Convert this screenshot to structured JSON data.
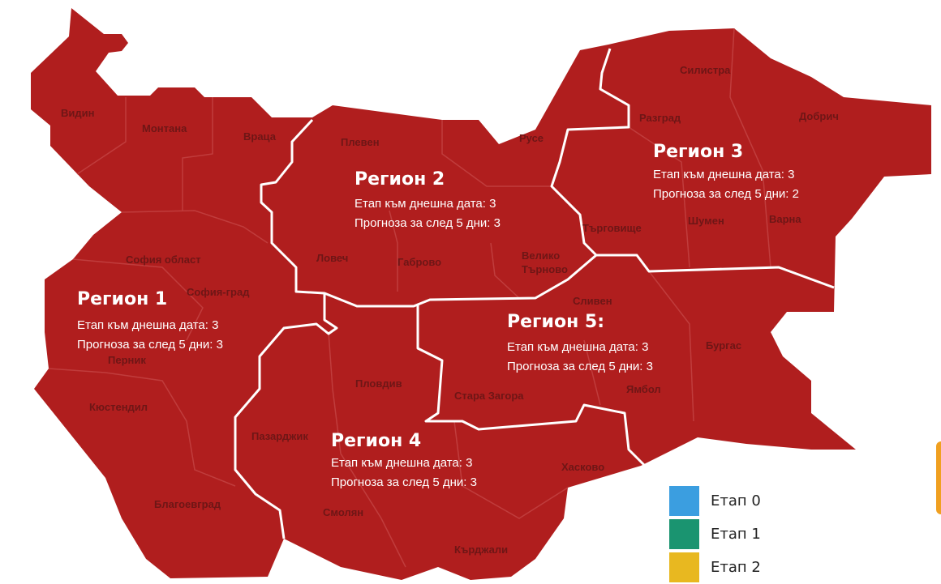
{
  "map": {
    "fill_color": "#b01e1e",
    "border_color": "#ffffff",
    "provinces": [
      {
        "name": "Видин"
      },
      {
        "name": "Монтана"
      },
      {
        "name": "Враца"
      },
      {
        "name": "Плевен"
      },
      {
        "name": "Русе"
      },
      {
        "name": "Силистра"
      },
      {
        "name": "Разград"
      },
      {
        "name": "Добрич"
      },
      {
        "name": "Търговище"
      },
      {
        "name": "Шумен"
      },
      {
        "name": "Варна"
      },
      {
        "name": "Ловеч"
      },
      {
        "name": "Габрово"
      },
      {
        "name": "Велико"
      },
      {
        "name": "Търново"
      },
      {
        "name": "София област"
      },
      {
        "name": "София-град"
      },
      {
        "name": "Перник"
      },
      {
        "name": "Кюстендил"
      },
      {
        "name": "Сливен"
      },
      {
        "name": "Бургас"
      },
      {
        "name": "Ямбол"
      },
      {
        "name": "Стара Загора"
      },
      {
        "name": "Пловдив"
      },
      {
        "name": "Пазарджик"
      },
      {
        "name": "Хасково"
      },
      {
        "name": "Смолян"
      },
      {
        "name": "Благоевград"
      },
      {
        "name": "Кърджали"
      }
    ],
    "regions": [
      {
        "title": "Регион 1",
        "current_label": "Етап към днешна дата:",
        "current": "3",
        "forecast_label": "Прогноза за след 5 дни:",
        "forecast": "3"
      },
      {
        "title": "Регион 2",
        "current_label": "Етап към днешна дата:",
        "current": "3",
        "forecast_label": "Прогноза за след 5 дни:",
        "forecast": "3"
      },
      {
        "title": "Регион 3",
        "current_label": "Етап към днешна дата:",
        "current": "3",
        "forecast_label": "Прогноза за след 5 дни:",
        "forecast": "2"
      },
      {
        "title": "Регион 4",
        "current_label": "Етап към днешна дата:",
        "current": "3",
        "forecast_label": "Прогноза за след 5 дни:",
        "forecast": "3"
      },
      {
        "title": "Регион 5:",
        "current_label": "Етап към днешна дата:",
        "current": "3",
        "forecast_label": "Прогноза за след 5 дни:",
        "forecast": "3"
      }
    ]
  },
  "legend": [
    {
      "label": "Етап 0",
      "color": "#3b9ee0"
    },
    {
      "label": "Етап 1",
      "color": "#1a9470"
    },
    {
      "label": "Етап 2",
      "color": "#e8b820"
    }
  ]
}
